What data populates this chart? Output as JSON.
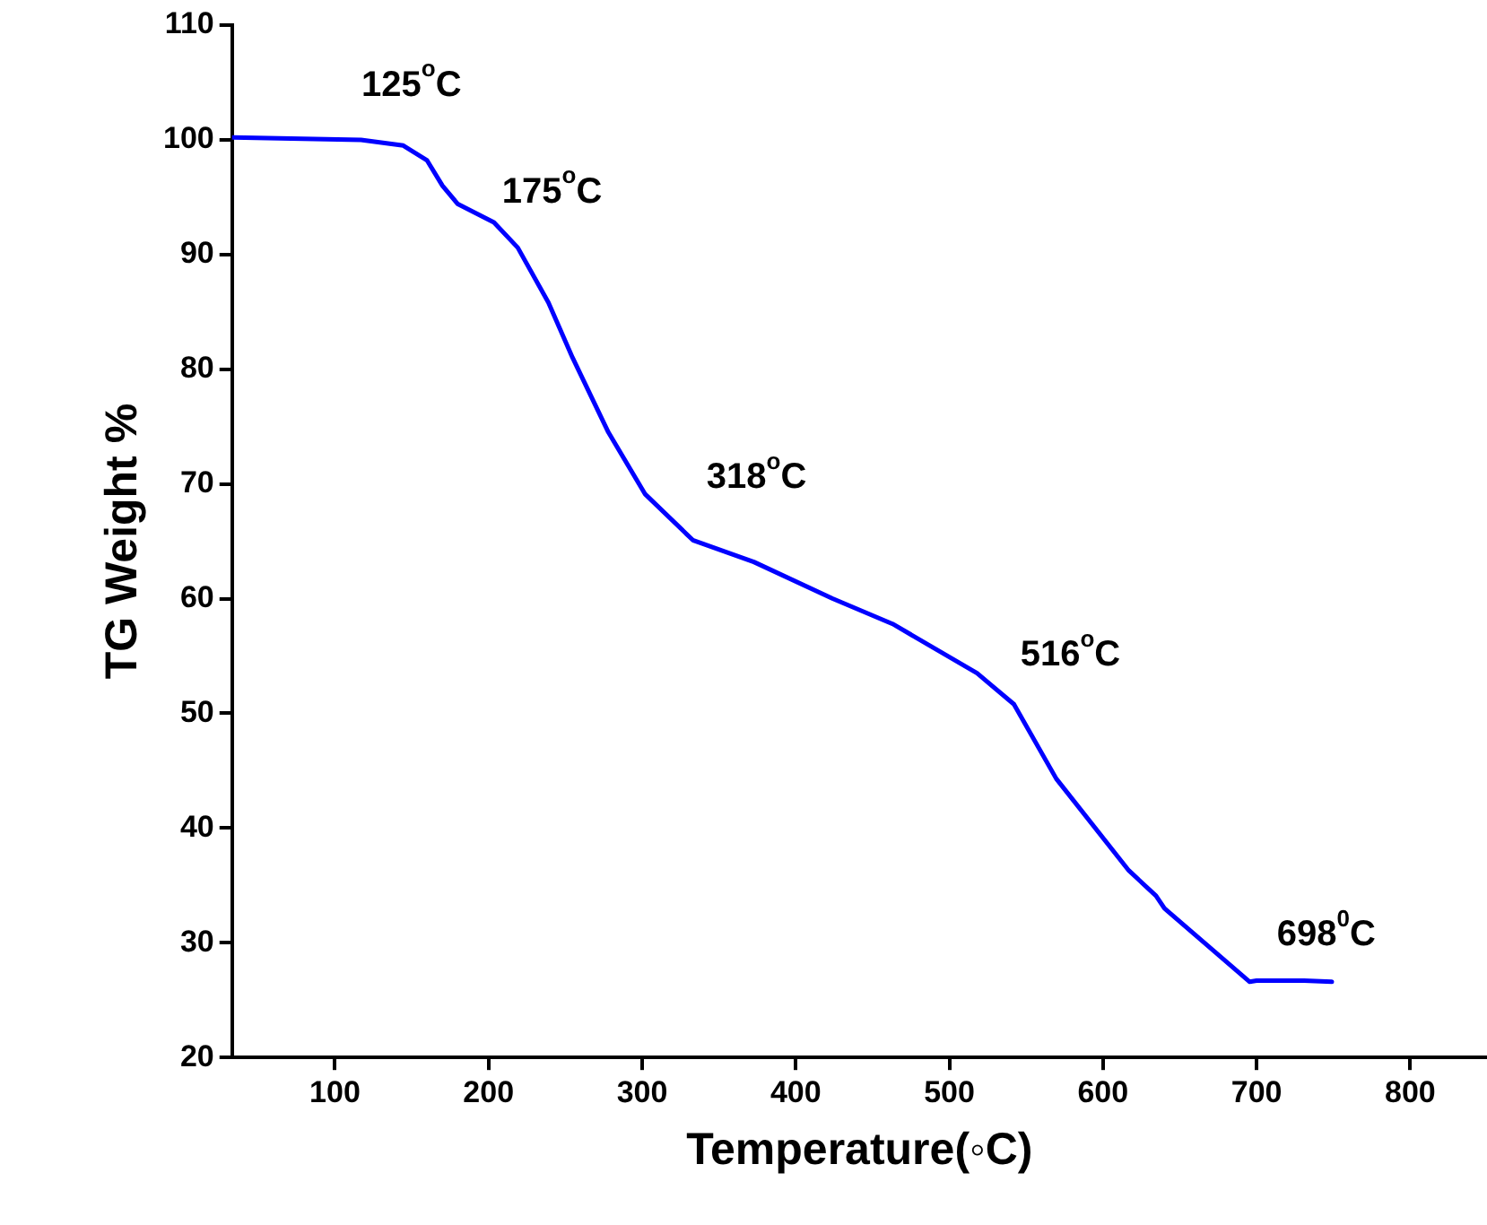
{
  "chart_data": {
    "type": "line",
    "xlabel": "Temperature(◦C)",
    "ylabel": "TG Weight %",
    "xlim": [
      33,
      850
    ],
    "xticks": [
      100,
      200,
      300,
      400,
      500,
      600,
      700,
      800
    ],
    "ylim": [
      20,
      110
    ],
    "yticks": [
      20,
      30,
      40,
      50,
      60,
      70,
      80,
      90,
      100,
      110
    ],
    "grid": false,
    "legend": false,
    "marker": "none",
    "line_style": "solid",
    "series": [
      {
        "color": "#0000ff",
        "x": [
          33.5,
          117,
          144.5,
          160,
          170,
          180,
          203.5,
          219,
          239,
          254.7,
          278,
          302,
          333,
          372.7,
          424,
          463,
          518,
          542,
          569.6,
          616.8,
          634.5,
          640,
          695.5,
          700,
          731,
          749
        ],
        "values": [
          100.2,
          100.0,
          99.5,
          98.2,
          96.0,
          94.4,
          92.8,
          90.6,
          85.8,
          81.0,
          74.5,
          69.1,
          65.1,
          63.2,
          60.0,
          57.8,
          53.5,
          50.8,
          44.3,
          36.3,
          34.1,
          33.0,
          26.6,
          26.7,
          26.7,
          26.6
        ]
      }
    ],
    "annotations": [
      "125$^{o}$C",
      "175$^{o}$C",
      "318$^{o}$C",
      "516$^{o}$C",
      "698$^{0}$C"
    ]
  }
}
